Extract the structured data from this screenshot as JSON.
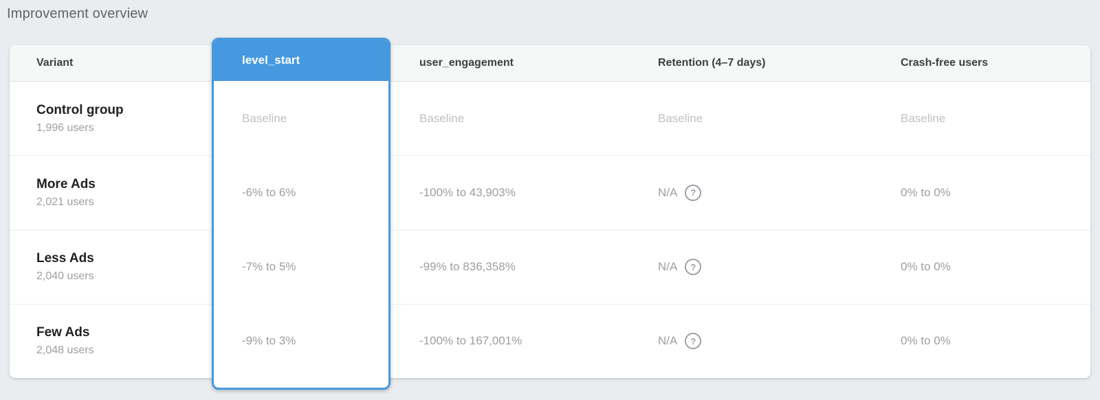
{
  "page": {
    "title": "Improvement overview"
  },
  "colors": {
    "accent_blue": "#4699DE",
    "page_background": "#EAEDEF",
    "header_background": "#F6F7F7",
    "value_gray": "#9E9E9E",
    "baseline_gray": "#C1C1C1"
  },
  "icons": {
    "help": {
      "name": "help-circle-icon",
      "glyph": "?"
    }
  },
  "table": {
    "columns": [
      {
        "id": "variant",
        "label": "Variant",
        "selected": false
      },
      {
        "id": "level_start",
        "label": "level_start",
        "selected": true
      },
      {
        "id": "user_engagement",
        "label": "user_engagement",
        "selected": false
      },
      {
        "id": "retention",
        "label": "Retention (4–7 days)",
        "selected": false
      },
      {
        "id": "crash_free",
        "label": "Crash-free users",
        "selected": false
      }
    ],
    "rows": [
      {
        "variant": "Control group",
        "users": "1,996 users",
        "level_start": "Baseline",
        "user_engagement": "Baseline",
        "retention": "Baseline",
        "crash_free": "Baseline",
        "is_baseline": true
      },
      {
        "variant": "More Ads",
        "users": "2,021 users",
        "level_start": "-6% to 6%",
        "user_engagement": "-100% to 43,903%",
        "retention": "N/A",
        "crash_free": "0% to 0%",
        "is_baseline": false
      },
      {
        "variant": "Less Ads",
        "users": "2,040 users",
        "level_start": "-7% to 5%",
        "user_engagement": "-99% to 836,358%",
        "retention": "N/A",
        "crash_free": "0% to 0%",
        "is_baseline": false
      },
      {
        "variant": "Few Ads",
        "users": "2,048 users",
        "level_start": "-9% to 3%",
        "user_engagement": "-100% to 167,001%",
        "retention": "N/A",
        "crash_free": "0% to 0%",
        "is_baseline": false
      }
    ]
  }
}
